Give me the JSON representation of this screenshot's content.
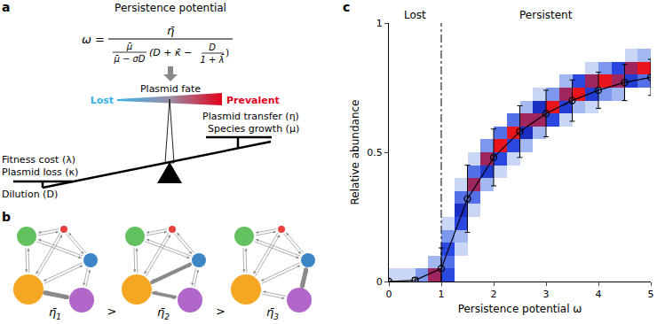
{
  "panels": [
    "a",
    "b",
    "c"
  ],
  "diagram_a": {
    "title": "Persistence potential",
    "formula": {
      "lhs": "ω =",
      "numerator": "η̄",
      "factor_numerator": "μ̄",
      "factor_denominator": "μ̄ − σD",
      "bracket_open": "(D + κ̄ −",
      "inner_numerator": "D",
      "inner_denominator": "1 + λ̄",
      "bracket_close": ")"
    },
    "fate_label": "Plasmid fate",
    "low_label": "Lost",
    "high_label": "Prevalent",
    "left_factors": [
      "Fitness cost (λ)",
      "Plasmid loss (κ)",
      "Dilution (D)"
    ],
    "right_factors": [
      "Plasmid transfer (η)",
      "Species growth (μ)"
    ]
  },
  "diagram_b": {
    "symbol": "η̄",
    "subscripts": [
      "1",
      "2",
      "3"
    ],
    "relation": ">"
  },
  "chart_data": {
    "type": "scatter",
    "x_label": "Persistence potential ω",
    "y_label": "Relative abundance",
    "x": [
      0,
      0.5,
      1,
      1.5,
      2,
      2.5,
      3,
      3.5,
      4,
      4.5,
      5
    ],
    "values": [
      0,
      0.005,
      0.05,
      0.32,
      0.48,
      0.58,
      0.65,
      0.7,
      0.74,
      0.77,
      0.79
    ],
    "errors": [
      0,
      0.01,
      0.08,
      0.13,
      0.11,
      0.1,
      0.09,
      0.08,
      0.07,
      0.07,
      0.07
    ],
    "color": "#000000",
    "marker": "open circle",
    "line_style": "solid",
    "xlim": [
      0,
      5
    ],
    "xticks": [
      0,
      1,
      2,
      3,
      4,
      5
    ],
    "ylim": [
      0,
      1
    ],
    "yticks": [
      0,
      0.5,
      1
    ],
    "grid": false,
    "threshold": {
      "x": 1,
      "line_style": "dashdot"
    },
    "regions": [
      {
        "text": "Lost",
        "x": 0.5
      },
      {
        "text": "Persistent",
        "x": 3
      }
    ],
    "density": {
      "x_bins": [
        0,
        0.25,
        0.5,
        0.75,
        1,
        1.25,
        1.5,
        1.75,
        2,
        2.25,
        2.5,
        2.75,
        3,
        3.25,
        3.5,
        3.75,
        4,
        4.25,
        4.5,
        4.75,
        5
      ],
      "y_bins": [
        0,
        0.05,
        0.1,
        0.15,
        0.2,
        0.25,
        0.3,
        0.35,
        0.4,
        0.45,
        0.5,
        0.55,
        0.6,
        0.65,
        0.7,
        0.75,
        0.8,
        0.85,
        0.9,
        0.95,
        1
      ],
      "count_range": [
        0,
        10
      ],
      "counts": [
        [
          1,
          1,
          3,
          8,
          5,
          0,
          0,
          0,
          0,
          0,
          0,
          0,
          0,
          0,
          0,
          0,
          0,
          0,
          0,
          0
        ],
        [
          0,
          0,
          0,
          2,
          4,
          0,
          0,
          0,
          0,
          0,
          0,
          0,
          0,
          0,
          0,
          0,
          0,
          0,
          0,
          0
        ],
        [
          0,
          0,
          0,
          0,
          5,
          1,
          0,
          0,
          0,
          0,
          0,
          0,
          0,
          0,
          0,
          0,
          0,
          0,
          0,
          0
        ],
        [
          0,
          0,
          0,
          0,
          3,
          2,
          0,
          0,
          0,
          0,
          0,
          0,
          0,
          0,
          0,
          0,
          0,
          0,
          0,
          0
        ],
        [
          0,
          0,
          0,
          0,
          1,
          5,
          0,
          0,
          0,
          0,
          0,
          0,
          0,
          0,
          0,
          0,
          0,
          0,
          0,
          0
        ],
        [
          0,
          0,
          0,
          0,
          0,
          7,
          1,
          0,
          0,
          0,
          0,
          0,
          0,
          0,
          0,
          0,
          0,
          0,
          0,
          0
        ],
        [
          0,
          0,
          0,
          0,
          0,
          4,
          4,
          0,
          0,
          0,
          0,
          0,
          0,
          0,
          0,
          0,
          0,
          0,
          0,
          0
        ],
        [
          0,
          0,
          0,
          0,
          0,
          1,
          8,
          2,
          0,
          0,
          0,
          0,
          0,
          0,
          0,
          0,
          0,
          0,
          0,
          0
        ],
        [
          0,
          0,
          0,
          0,
          0,
          0,
          4,
          6,
          1,
          0,
          0,
          0,
          0,
          0,
          0,
          0,
          0,
          0,
          0,
          0
        ],
        [
          0,
          0,
          0,
          0,
          0,
          0,
          1,
          8,
          5,
          1,
          0,
          0,
          0,
          0,
          0,
          0,
          0,
          0,
          0,
          0
        ],
        [
          0,
          0,
          0,
          0,
          0,
          0,
          0,
          3,
          9,
          5,
          2,
          0,
          0,
          0,
          0,
          0,
          0,
          0,
          0,
          0
        ],
        [
          0,
          0,
          0,
          0,
          0,
          0,
          0,
          0,
          4,
          9,
          7,
          2,
          0,
          0,
          0,
          0,
          0,
          0,
          0,
          0
        ],
        [
          0,
          0,
          0,
          0,
          0,
          0,
          0,
          0,
          0,
          4,
          8,
          8,
          5,
          1,
          0,
          0,
          0,
          0,
          0,
          0
        ],
        [
          0,
          0,
          0,
          0,
          0,
          0,
          0,
          0,
          0,
          0,
          2,
          7,
          9,
          6,
          2,
          1,
          0,
          0,
          0,
          0
        ],
        [
          0,
          0,
          0,
          0,
          0,
          0,
          0,
          0,
          0,
          0,
          0,
          1,
          3,
          8,
          9,
          6,
          3,
          2,
          0,
          0
        ],
        [
          0,
          0,
          0,
          0,
          0,
          0,
          0,
          0,
          0,
          0,
          0,
          0,
          0,
          2,
          5,
          8,
          9,
          8,
          6,
          4
        ],
        [
          0,
          0,
          0,
          0,
          0,
          0,
          0,
          0,
          0,
          0,
          0,
          0,
          0,
          0,
          0,
          1,
          3,
          5,
          8,
          9
        ],
        [
          0,
          0,
          0,
          0,
          0,
          0,
          0,
          0,
          0,
          0,
          0,
          0,
          0,
          0,
          0,
          0,
          0,
          0,
          1,
          2
        ],
        [
          0,
          0,
          0,
          0,
          0,
          0,
          0,
          0,
          0,
          0,
          0,
          0,
          0,
          0,
          0,
          0,
          0,
          0,
          0,
          0
        ],
        [
          0,
          0,
          0,
          0,
          0,
          0,
          0,
          0,
          0,
          0,
          0,
          0,
          0,
          0,
          0,
          0,
          0,
          0,
          0,
          0
        ]
      ]
    }
  }
}
